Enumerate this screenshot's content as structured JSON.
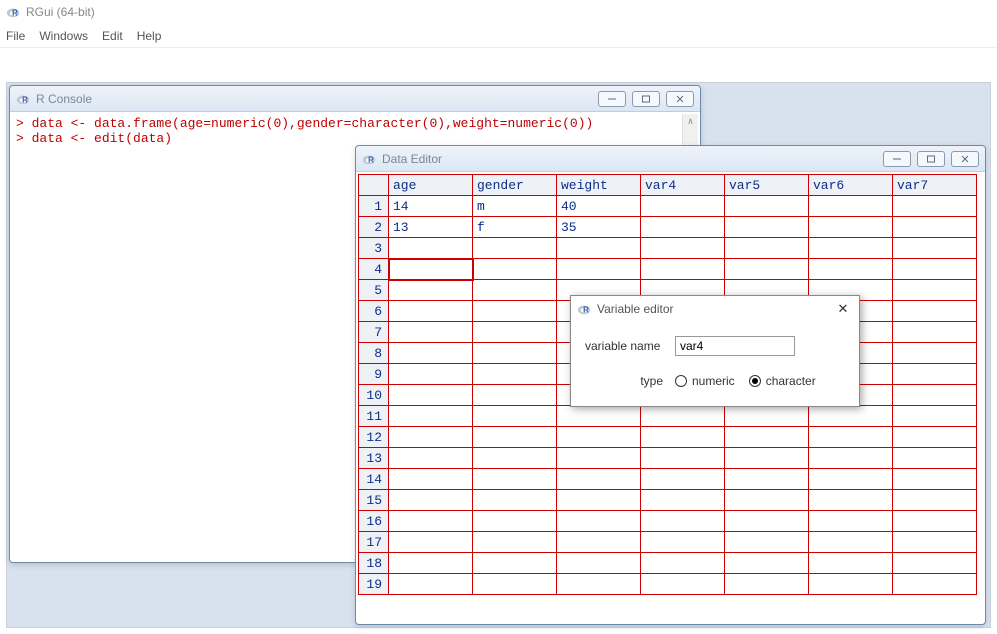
{
  "app": {
    "title": "RGui (64-bit)",
    "menus": [
      "File",
      "Windows",
      "Edit",
      "Help"
    ]
  },
  "console": {
    "title": "R Console",
    "lines": [
      {
        "prompt": "> ",
        "text": "data <- data.frame(age=numeric(0),gender=character(0),weight=numeric(0))"
      },
      {
        "prompt": "> ",
        "text": "data <- edit(data)"
      }
    ]
  },
  "editor": {
    "title": "Data Editor",
    "columns": [
      "age",
      "gender",
      "weight",
      "var4",
      "var5",
      "var6",
      "var7"
    ],
    "rows": [
      [
        "14",
        "m",
        "40",
        "",
        "",
        "",
        ""
      ],
      [
        "13",
        "f",
        "35",
        "",
        "",
        "",
        ""
      ],
      [
        "",
        "",
        "",
        "",
        "",
        "",
        ""
      ],
      [
        "",
        "",
        "",
        "",
        "",
        "",
        ""
      ],
      [
        "",
        "",
        "",
        "",
        "",
        "",
        ""
      ],
      [
        "",
        "",
        "",
        "",
        "",
        "",
        ""
      ],
      [
        "",
        "",
        "",
        "",
        "",
        "",
        ""
      ],
      [
        "",
        "",
        "",
        "",
        "",
        "",
        ""
      ],
      [
        "",
        "",
        "",
        "",
        "",
        "",
        ""
      ],
      [
        "",
        "",
        "",
        "",
        "",
        "",
        ""
      ],
      [
        "",
        "",
        "",
        "",
        "",
        "",
        ""
      ],
      [
        "",
        "",
        "",
        "",
        "",
        "",
        ""
      ],
      [
        "",
        "",
        "",
        "",
        "",
        "",
        ""
      ],
      [
        "",
        "",
        "",
        "",
        "",
        "",
        ""
      ],
      [
        "",
        "",
        "",
        "",
        "",
        "",
        ""
      ],
      [
        "",
        "",
        "",
        "",
        "",
        "",
        ""
      ],
      [
        "",
        "",
        "",
        "",
        "",
        "",
        ""
      ],
      [
        "",
        "",
        "",
        "",
        "",
        "",
        ""
      ],
      [
        "",
        "",
        "",
        "",
        "",
        "",
        ""
      ]
    ],
    "selected": {
      "row": 4,
      "col": 1
    }
  },
  "variable_editor": {
    "title": "Variable editor",
    "name_label": "variable name",
    "name_value": "var4",
    "type_label": "type",
    "type_options": [
      "numeric",
      "character"
    ],
    "type_selected": "character"
  },
  "colors": {
    "grid_border": "#d00000",
    "grid_header_bg": "#eef1f6",
    "code_text": "#c00000",
    "cell_text": "#0b2e8a",
    "mdi_bg": "#d8e1ee"
  }
}
